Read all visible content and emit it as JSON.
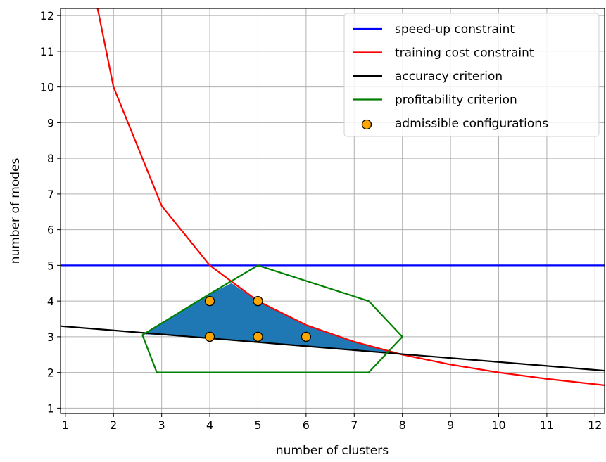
{
  "chart_data": {
    "type": "line",
    "title": "",
    "xlabel": "number of clusters",
    "ylabel": "number of modes",
    "xlim": [
      0.9,
      12.2
    ],
    "ylim": [
      0.85,
      12.2
    ],
    "xticks": [
      1,
      2,
      3,
      4,
      5,
      6,
      7,
      8,
      9,
      10,
      11,
      12
    ],
    "yticks": [
      1,
      2,
      3,
      4,
      5,
      6,
      7,
      8,
      9,
      10,
      11,
      12
    ],
    "grid": true,
    "legend_position": "upper right",
    "series": [
      {
        "name": "speed-up constraint",
        "color": "#0000ff",
        "x": [
          0.9,
          12.2
        ],
        "y": [
          5,
          5
        ]
      },
      {
        "name": "training cost constraint",
        "color": "#ff0000",
        "x": [
          1.67,
          2,
          3,
          4,
          5,
          6,
          7,
          8,
          9,
          10,
          11,
          12,
          12.2
        ],
        "y": [
          12.2,
          10,
          6.67,
          5,
          4,
          3.33,
          2.86,
          2.5,
          2.22,
          2.0,
          1.82,
          1.67,
          1.64
        ]
      },
      {
        "name": "accuracy criterion",
        "color": "#000000",
        "x": [
          0.9,
          12.2
        ],
        "y": [
          3.3,
          2.05
        ]
      },
      {
        "name": "profitability criterion",
        "color": "#008000",
        "x": [
          2.6,
          4,
          5,
          7.3,
          8,
          7.3,
          2.9,
          2.6
        ],
        "y": [
          3.05,
          4.2,
          5,
          4.0,
          3.0,
          2.0,
          2.0,
          3.05
        ]
      },
      {
        "name": "admissible configurations",
        "type": "scatter",
        "color": "#ffa500",
        "x": [
          4,
          5,
          4,
          5,
          6
        ],
        "y": [
          4,
          4,
          3,
          3,
          3
        ]
      }
    ],
    "filled_region": {
      "color": "#1f77b4",
      "x": [
        2.64,
        3.0,
        4.0,
        4.45,
        5.0,
        6.0,
        7.0,
        8.0,
        7.0,
        6.0,
        5.0,
        4.0,
        3.0
      ],
      "y": [
        3.07,
        3.4,
        4.2,
        4.5,
        4.0,
        3.33,
        2.86,
        2.5,
        2.61,
        2.72,
        2.83,
        2.94,
        3.05
      ]
    }
  }
}
